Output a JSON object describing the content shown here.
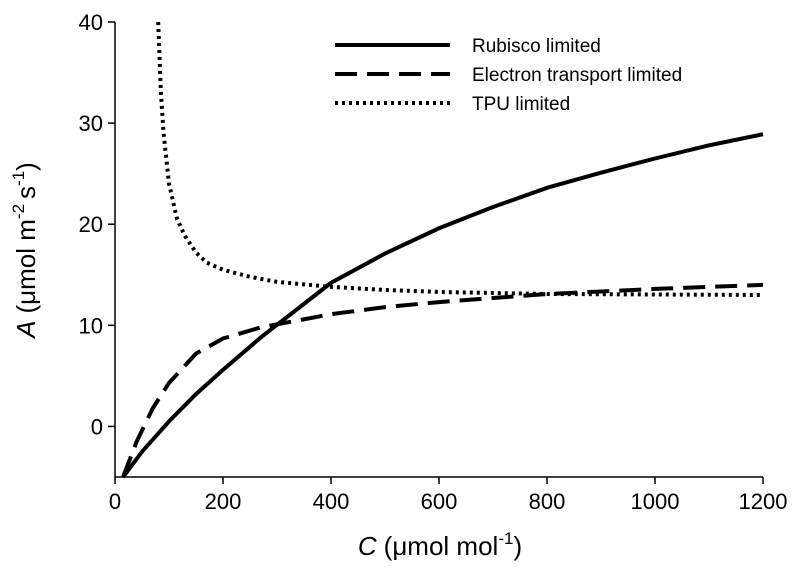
{
  "chart_data": {
    "type": "line",
    "x_label": [
      "C",
      "(μmol mol",
      "-1",
      ")"
    ],
    "y_label": [
      "A",
      "(μmol m",
      "-2",
      "s",
      "-1",
      ")"
    ],
    "xlim": [
      0,
      1200
    ],
    "xticks": [
      0,
      200,
      400,
      600,
      800,
      1000,
      1200
    ],
    "ylim": [
      -5,
      40
    ],
    "yticks": [
      0,
      10,
      20,
      30,
      40
    ],
    "legend": "upper right",
    "series": [
      {
        "name": "Rubisco limited",
        "color": "#000000",
        "style": "solid",
        "x": [
          15,
          50,
          100,
          150,
          200,
          270,
          400,
          500,
          600,
          700,
          800,
          900,
          1000,
          1100,
          1200
        ],
        "values": [
          -5,
          -2.5,
          0.5,
          3.2,
          5.6,
          8.8,
          14.2,
          17.1,
          19.6,
          21.7,
          23.6,
          25.1,
          26.5,
          27.8,
          28.9
        ]
      },
      {
        "name": "Electron transport limited",
        "color": "#000000",
        "style": "dashed",
        "x": [
          15,
          40,
          70,
          100,
          150,
          200,
          270,
          400,
          500,
          600,
          800,
          1000,
          1200
        ],
        "values": [
          -5,
          -1.5,
          1.8,
          4.3,
          7.2,
          8.7,
          9.8,
          11.1,
          11.8,
          12.3,
          13.1,
          13.6,
          14
        ]
      },
      {
        "name": "TPU limited",
        "color": "#000000",
        "style": "dotted",
        "x": [
          80,
          85,
          90,
          100,
          115,
          130,
          150,
          170,
          200,
          250,
          300,
          400,
          500,
          600,
          800,
          1000,
          1200
        ],
        "values": [
          40,
          33,
          29,
          24,
          20.5,
          18.8,
          17.2,
          16.2,
          15.5,
          14.8,
          14.3,
          13.8,
          13.5,
          13.3,
          13.1,
          13.05,
          13
        ]
      }
    ]
  }
}
